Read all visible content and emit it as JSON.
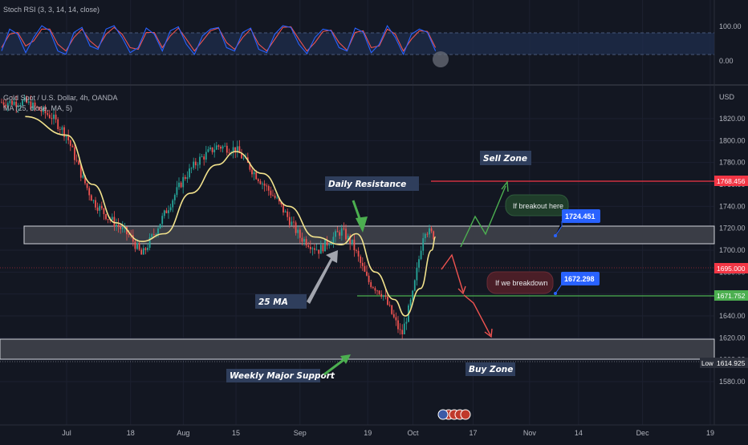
{
  "oscillator": {
    "legend": "Stoch RSI (3, 3, 14, 14, close)",
    "ticks": [
      "100.00",
      "0.00"
    ]
  },
  "main": {
    "legend_symbol": "Gold Spot / U.S. Dollar, 4h, OANDA",
    "legend_ma": "MA (25, close, MA, 5)",
    "currency": "USD"
  },
  "colors": {
    "background": "#131722",
    "bull": "#26a69a",
    "bear": "#ef5350",
    "ma": "#f2e28c",
    "stoch_k": "#2962ff",
    "stoch_d": "#ef5350",
    "resistance_line": "#f23645",
    "support_line": "#4caf50",
    "callout_blue": "#2962ff",
    "callout_green": "#1b3a26",
    "callout_red": "#4a1e27"
  },
  "chart_data": {
    "type": "candlestick",
    "title": "Gold Spot / U.S. Dollar, 4h, OANDA",
    "y_unit": "USD",
    "ylim": [
      1570,
      1840
    ],
    "y_ticks": [
      1580,
      1600,
      1620,
      1640,
      1660,
      1680,
      1700,
      1720,
      1740,
      1760,
      1780,
      1800,
      1820
    ],
    "x_ticks": [
      "Jul",
      "18",
      "Aug",
      "15",
      "Sep",
      "19",
      "Oct",
      "17",
      "Nov",
      "14",
      "Dec",
      "19"
    ],
    "price_path": [
      [
        "Jun 20",
        1835
      ],
      [
        "Jun 27",
        1822
      ],
      [
        "Jul 1",
        1805
      ],
      [
        "Jul 5",
        1768
      ],
      [
        "Jul 8",
        1745
      ],
      [
        "Jul 12",
        1730
      ],
      [
        "Jul 18",
        1712
      ],
      [
        "Jul 21",
        1695
      ],
      [
        "Jul 25",
        1720
      ],
      [
        "Aug 1",
        1765
      ],
      [
        "Aug 5",
        1782
      ],
      [
        "Aug 10",
        1795
      ],
      [
        "Aug 15",
        1792
      ],
      [
        "Aug 20",
        1770
      ],
      [
        "Aug 26",
        1745
      ],
      [
        "Sep 1",
        1712
      ],
      [
        "Sep 6",
        1700
      ],
      [
        "Sep 12",
        1718
      ],
      [
        "Sep 15",
        1705
      ],
      [
        "Sep 19",
        1672
      ],
      [
        "Sep 23",
        1660
      ],
      [
        "Sep 28",
        1622
      ],
      [
        "Oct 1",
        1660
      ],
      [
        "Oct 4",
        1720
      ],
      [
        "Oct 7",
        1712
      ]
    ],
    "ma_path": [
      [
        "Jun 20",
        1822
      ],
      [
        "Jul 1",
        1805
      ],
      [
        "Jul 8",
        1760
      ],
      [
        "Jul 14",
        1725
      ],
      [
        "Jul 21",
        1708
      ],
      [
        "Jul 27",
        1715
      ],
      [
        "Aug 3",
        1752
      ],
      [
        "Aug 10",
        1778
      ],
      [
        "Aug 15",
        1790
      ],
      [
        "Aug 22",
        1770
      ],
      [
        "Aug 29",
        1740
      ],
      [
        "Sep 5",
        1712
      ],
      [
        "Sep 12",
        1705
      ],
      [
        "Sep 16",
        1715
      ],
      [
        "Sep 21",
        1680
      ],
      [
        "Sep 26",
        1655
      ],
      [
        "Sep 29",
        1640
      ],
      [
        "Oct 3",
        1665
      ],
      [
        "Oct 6",
        1700
      ],
      [
        "Oct 7",
        1712
      ]
    ],
    "stoch_rsi": {
      "k": [
        20,
        85,
        70,
        15,
        60,
        95,
        80,
        20,
        10,
        75,
        90,
        35,
        25,
        85,
        95,
        60,
        15,
        30,
        88,
        70,
        20,
        80,
        92,
        40,
        10,
        65,
        85,
        90,
        30,
        20,
        75,
        88,
        25,
        15,
        70,
        95,
        90,
        40,
        12,
        60,
        85,
        80,
        30,
        20,
        88,
        76,
        15,
        40,
        95,
        60,
        10,
        70,
        85,
        75,
        20
      ],
      "d": [
        30,
        70,
        75,
        35,
        50,
        85,
        85,
        40,
        20,
        60,
        85,
        50,
        30,
        70,
        90,
        70,
        30,
        25,
        75,
        75,
        30,
        65,
        88,
        55,
        20,
        50,
        80,
        88,
        45,
        25,
        60,
        85,
        40,
        20,
        55,
        90,
        92,
        55,
        20,
        45,
        78,
        82,
        45,
        22,
        75,
        80,
        30,
        35,
        85,
        70,
        20,
        55,
        80,
        78,
        30
      ]
    },
    "zones": [
      {
        "label": "Daily Resistance",
        "range": [
          1716,
          1730
        ]
      },
      {
        "label": "Weekly Major Support",
        "range": [
          1620,
          1634
        ]
      }
    ],
    "price_labels": [
      {
        "value": "1768.456",
        "kind": "resistance"
      },
      {
        "value": "1695.000",
        "kind": "last"
      },
      {
        "value": "1671.752",
        "kind": "support"
      },
      {
        "value": "1614.925",
        "kind": "low",
        "tag": "Low"
      }
    ],
    "callouts": [
      {
        "text": "If breakout here",
        "price": "1724.451"
      },
      {
        "text": "If we breakdown",
        "price": "1672.298"
      }
    ],
    "annotations": [
      "Sell Zone",
      "Daily Resistance",
      "25 MA",
      "Weekly Major Support",
      "Buy Zone"
    ]
  }
}
